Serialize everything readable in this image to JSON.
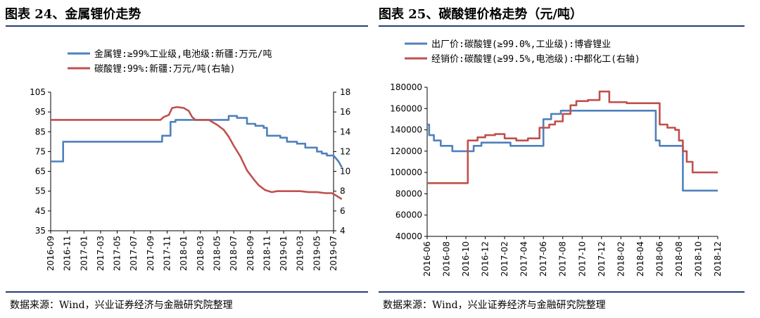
{
  "panels": {
    "left": {
      "title": "图表 24、金属锂价走势",
      "source": "数据来源：Wind，兴业证券经济与金融研究院整理"
    },
    "right": {
      "title": "图表 25、碳酸锂价格走势（元/吨）",
      "source": "数据来源：Wind，兴业证券经济与金融研究院整理"
    }
  },
  "chart_data": [
    {
      "type": "line",
      "title": "图表 24、金属锂价走势",
      "x_ticks": [
        "2016-09",
        "2016-11",
        "2017-01",
        "2017-03",
        "2017-05",
        "2017-07",
        "2017-09",
        "2017-11",
        "2018-01",
        "2018-03",
        "2018-05",
        "2018-07",
        "2018-09",
        "2018-11",
        "2019-01",
        "2019-03",
        "2019-05",
        "2019-07"
      ],
      "ylim_left": [
        35,
        105
      ],
      "yticks_left": [
        35,
        45,
        55,
        65,
        75,
        85,
        95,
        105
      ],
      "ylim_right": [
        4,
        18
      ],
      "yticks_right": [
        4,
        6,
        8,
        10,
        12,
        14,
        16,
        18
      ],
      "legend_position": "top",
      "series": [
        {
          "name": "金属锂:≥99%工业级,电池级:新疆:万元/吨",
          "axis": "left",
          "color": "#4f81bd",
          "points": [
            [
              0,
              70
            ],
            [
              0.75,
              70
            ],
            [
              0.75,
              80
            ],
            [
              6.7,
              80
            ],
            [
              6.7,
              83
            ],
            [
              7.2,
              83
            ],
            [
              7.2,
              90
            ],
            [
              7.5,
              90
            ],
            [
              7.5,
              91
            ],
            [
              10.7,
              91
            ],
            [
              10.7,
              93
            ],
            [
              11.2,
              93
            ],
            [
              11.2,
              92
            ],
            [
              11.8,
              92
            ],
            [
              11.8,
              89
            ],
            [
              12.3,
              89
            ],
            [
              12.3,
              88
            ],
            [
              12.8,
              88
            ],
            [
              12.8,
              87
            ],
            [
              13,
              87
            ],
            [
              13,
              83
            ],
            [
              13.8,
              83
            ],
            [
              13.8,
              82
            ],
            [
              14.2,
              82
            ],
            [
              14.2,
              80
            ],
            [
              14.8,
              80
            ],
            [
              14.8,
              79
            ],
            [
              15.3,
              79
            ],
            [
              15.3,
              77
            ],
            [
              16,
              77
            ],
            [
              16,
              75
            ],
            [
              16.3,
              75
            ],
            [
              16.3,
              74
            ],
            [
              16.6,
              74
            ],
            [
              16.6,
              73
            ],
            [
              17.0,
              73
            ],
            [
              17.1,
              72
            ],
            [
              17.3,
              70
            ],
            [
              17.5,
              67
            ]
          ]
        },
        {
          "name": "碳酸锂:99%:新疆:万元/吨(右轴)",
          "axis": "right",
          "color": "#c0504d",
          "points": [
            [
              0,
              15.2
            ],
            [
              6.6,
              15.2
            ],
            [
              6.8,
              15.5
            ],
            [
              7.1,
              15.7
            ],
            [
              7.3,
              16.4
            ],
            [
              7.6,
              16.5
            ],
            [
              8.0,
              16.4
            ],
            [
              8.3,
              16.1
            ],
            [
              8.5,
              15.5
            ],
            [
              8.7,
              15.2
            ],
            [
              9.5,
              15.2
            ],
            [
              10.0,
              14.7
            ],
            [
              10.4,
              14.2
            ],
            [
              10.7,
              13.5
            ],
            [
              11.0,
              12.6
            ],
            [
              11.4,
              11.5
            ],
            [
              11.8,
              10.1
            ],
            [
              12.2,
              9.2
            ],
            [
              12.5,
              8.6
            ],
            [
              12.9,
              8.1
            ],
            [
              13.3,
              7.9
            ],
            [
              13.6,
              8.0
            ],
            [
              14.0,
              8.0
            ],
            [
              14.5,
              8.0
            ],
            [
              15.0,
              8.0
            ],
            [
              15.5,
              7.9
            ],
            [
              16.0,
              7.9
            ],
            [
              16.5,
              7.8
            ],
            [
              16.9,
              7.8
            ],
            [
              17.1,
              7.6
            ],
            [
              17.5,
              7.2
            ]
          ]
        }
      ]
    },
    {
      "type": "line",
      "title": "图表 25、碳酸锂价格走势（元/吨）",
      "x_ticks": [
        "2016-06",
        "2016-08",
        "2016-10",
        "2016-12",
        "2017-02",
        "2017-04",
        "2017-06",
        "2017-08",
        "2017-10",
        "2017-12",
        "2018-02",
        "2018-04",
        "2018-06",
        "2018-08",
        "2018-10",
        "2018-12"
      ],
      "ylim": [
        40000,
        180000
      ],
      "yticks": [
        40000,
        60000,
        80000,
        100000,
        120000,
        140000,
        160000,
        180000
      ],
      "legend_position": "top",
      "series": [
        {
          "name": "出厂价:碳酸锂(≥99.0%,工业级):博睿锂业",
          "color": "#4f81bd",
          "points": [
            [
              0,
              145000
            ],
            [
              0.1,
              145000
            ],
            [
              0.1,
              135000
            ],
            [
              0.35,
              135000
            ],
            [
              0.35,
              130000
            ],
            [
              0.7,
              130000
            ],
            [
              0.7,
              125000
            ],
            [
              1.3,
              125000
            ],
            [
              1.3,
              120000
            ],
            [
              2.4,
              120000
            ],
            [
              2.4,
              125000
            ],
            [
              2.8,
              125000
            ],
            [
              2.8,
              128000
            ],
            [
              4.3,
              128000
            ],
            [
              4.3,
              125000
            ],
            [
              6.0,
              125000
            ],
            [
              6.0,
              150000
            ],
            [
              6.4,
              150000
            ],
            [
              6.4,
              155000
            ],
            [
              6.9,
              155000
            ],
            [
              6.9,
              158000
            ],
            [
              11.8,
              158000
            ],
            [
              11.8,
              130000
            ],
            [
              12.0,
              130000
            ],
            [
              12.0,
              125000
            ],
            [
              13.2,
              125000
            ],
            [
              13.2,
              83000
            ],
            [
              15.0,
              83000
            ]
          ]
        },
        {
          "name": "经销价:碳酸锂(≥99.5%,电池级):中都化工(右轴)",
          "color": "#c0504d",
          "points": [
            [
              0,
              90000
            ],
            [
              2.1,
              90000
            ],
            [
              2.1,
              130000
            ],
            [
              2.6,
              130000
            ],
            [
              2.6,
              133000
            ],
            [
              3.0,
              133000
            ],
            [
              3.0,
              135000
            ],
            [
              3.5,
              135000
            ],
            [
              3.5,
              136000
            ],
            [
              4.0,
              136000
            ],
            [
              4.0,
              132000
            ],
            [
              4.6,
              132000
            ],
            [
              4.6,
              130000
            ],
            [
              5.2,
              130000
            ],
            [
              5.2,
              132000
            ],
            [
              5.8,
              132000
            ],
            [
              5.8,
              142000
            ],
            [
              6.3,
              142000
            ],
            [
              6.3,
              145000
            ],
            [
              6.6,
              145000
            ],
            [
              6.6,
              148000
            ],
            [
              7.0,
              148000
            ],
            [
              7.0,
              155000
            ],
            [
              7.4,
              155000
            ],
            [
              7.4,
              163000
            ],
            [
              7.7,
              163000
            ],
            [
              7.7,
              167000
            ],
            [
              8.3,
              167000
            ],
            [
              8.3,
              168000
            ],
            [
              8.9,
              168000
            ],
            [
              8.9,
              176000
            ],
            [
              9.4,
              176000
            ],
            [
              9.4,
              166000
            ],
            [
              10.3,
              166000
            ],
            [
              10.3,
              165000
            ],
            [
              12.0,
              165000
            ],
            [
              12.0,
              145000
            ],
            [
              12.4,
              145000
            ],
            [
              12.4,
              142000
            ],
            [
              12.8,
              142000
            ],
            [
              12.8,
              140000
            ],
            [
              13.0,
              140000
            ],
            [
              13.0,
              130000
            ],
            [
              13.2,
              130000
            ],
            [
              13.2,
              120000
            ],
            [
              13.4,
              120000
            ],
            [
              13.4,
              110000
            ],
            [
              13.7,
              110000
            ],
            [
              13.7,
              100000
            ],
            [
              15.0,
              100000
            ]
          ]
        }
      ]
    }
  ]
}
